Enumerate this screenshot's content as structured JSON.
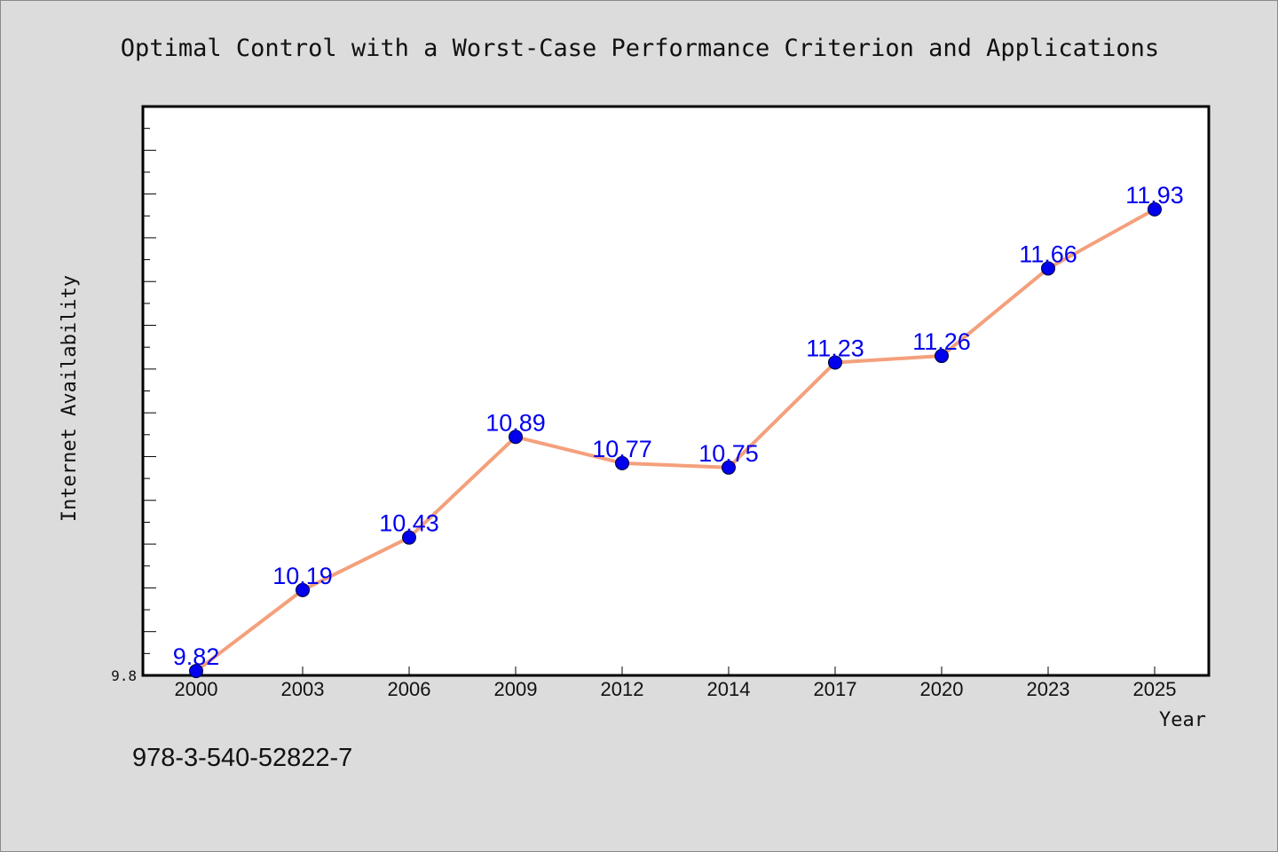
{
  "chart_data": {
    "type": "line",
    "title": "Optimal Control with a Worst-Case Performance Criterion and Applications",
    "xlabel": "Year",
    "ylabel": "Internet Availability",
    "categories": [
      "2000",
      "2003",
      "2006",
      "2009",
      "2012",
      "2014",
      "2017",
      "2020",
      "2023",
      "2025"
    ],
    "series": [
      {
        "values": [
          9.82,
          10.19,
          10.43,
          10.89,
          10.77,
          10.75,
          11.23,
          11.26,
          11.66,
          11.93
        ],
        "labels": [
          "9.82",
          "10.19",
          "10.43",
          "10.89",
          "10.77",
          "10.75",
          "11.23",
          "11.26",
          "11.66",
          "11.93"
        ]
      }
    ],
    "ylim": [
      9.8,
      12.4
    ],
    "ytick_labels": [
      "9.8"
    ],
    "grid": false,
    "legend": "none",
    "colors": {
      "line": "#f4a07c",
      "marker": "#0000ee",
      "data_label": "#0000ee",
      "plot_background": "#ffffff",
      "figure_background": "#dcdcdc"
    }
  },
  "footer": {
    "isbn": "978-3-540-52822-7"
  }
}
